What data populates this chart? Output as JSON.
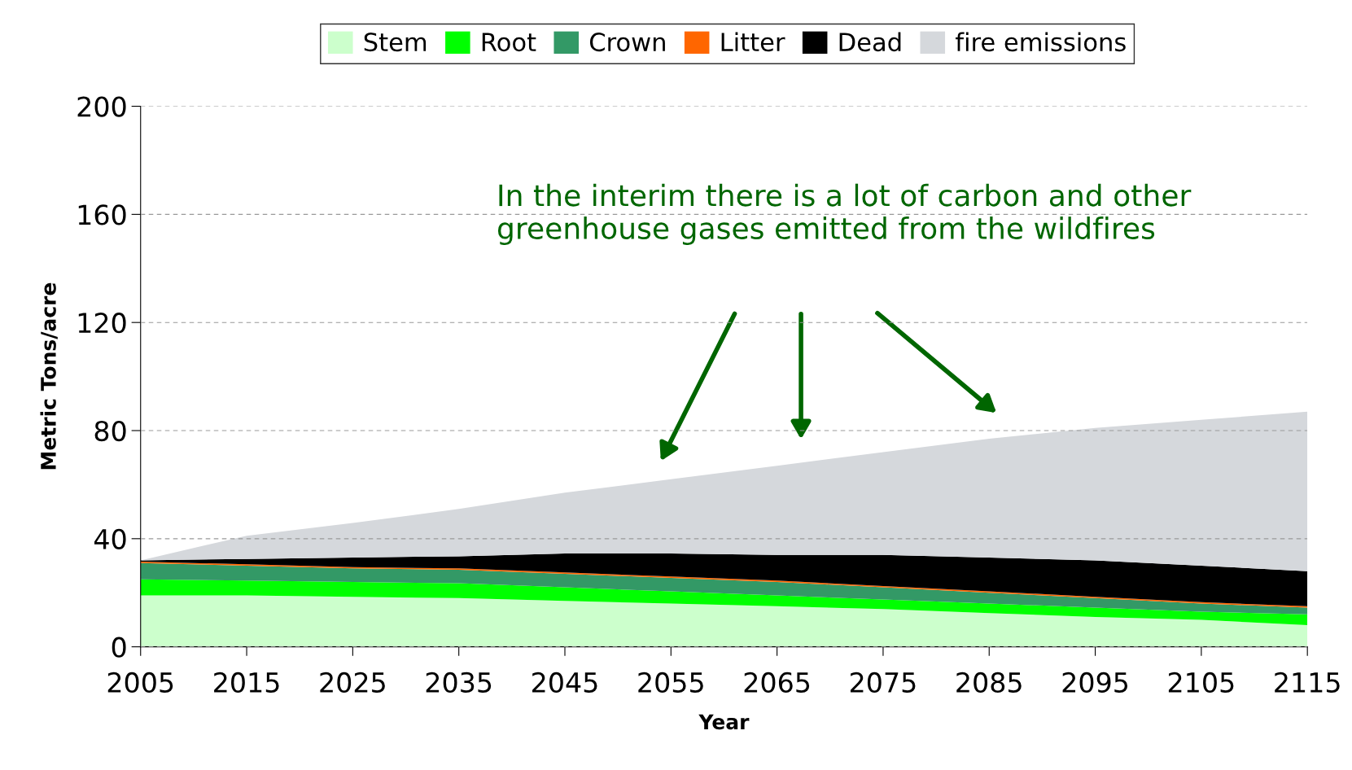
{
  "chart_data": {
    "type": "area",
    "stacked": true,
    "xlabel": "Year",
    "ylabel": "Metric Tons/acre",
    "x": [
      2005,
      2015,
      2025,
      2035,
      2045,
      2055,
      2065,
      2075,
      2085,
      2095,
      2105,
      2115
    ],
    "series": [
      {
        "name": "Stem",
        "color": "#ccffcc",
        "values": [
          19,
          19,
          18.5,
          18,
          17,
          16,
          15,
          14,
          12.5,
          11,
          10,
          8
        ]
      },
      {
        "name": "Root",
        "color": "#00ff00",
        "values": [
          6,
          5.5,
          5.5,
          5.5,
          5,
          4.5,
          4,
          3.5,
          3.5,
          3.5,
          3,
          4
        ]
      },
      {
        "name": "Crown",
        "color": "#339966",
        "values": [
          6,
          5.5,
          5,
          5,
          5,
          5,
          5,
          4.5,
          4,
          3.5,
          3,
          2.5
        ]
      },
      {
        "name": "Litter",
        "color": "#ff6600",
        "values": [
          0.5,
          0.5,
          0.5,
          0.5,
          0.5,
          0.5,
          0.5,
          0.5,
          0.5,
          0.5,
          0.5,
          0.5
        ]
      },
      {
        "name": "Dead",
        "color": "#000000",
        "values": [
          0.5,
          2,
          3.5,
          4.5,
          7,
          8.5,
          9.5,
          11.5,
          12.5,
          13.5,
          13.5,
          13
        ]
      },
      {
        "name": "fire emissions",
        "color": "#d5d8dc",
        "values": [
          0,
          8.6,
          12.8,
          17.5,
          22.5,
          27.5,
          33,
          38,
          44,
          49,
          54,
          59
        ]
      }
    ],
    "xlim": [
      2005,
      2115
    ],
    "xticks": [
      2005,
      2015,
      2025,
      2035,
      2045,
      2055,
      2065,
      2075,
      2085,
      2095,
      2105,
      2115
    ],
    "ylim": [
      0,
      200
    ],
    "yticks": [
      0,
      40,
      80,
      120,
      160,
      200
    ],
    "grid": "y",
    "legend": "top",
    "annotations": [
      "In the interim there is a lot of carbon and other greenhouse gases emitted from the wildfires"
    ]
  }
}
